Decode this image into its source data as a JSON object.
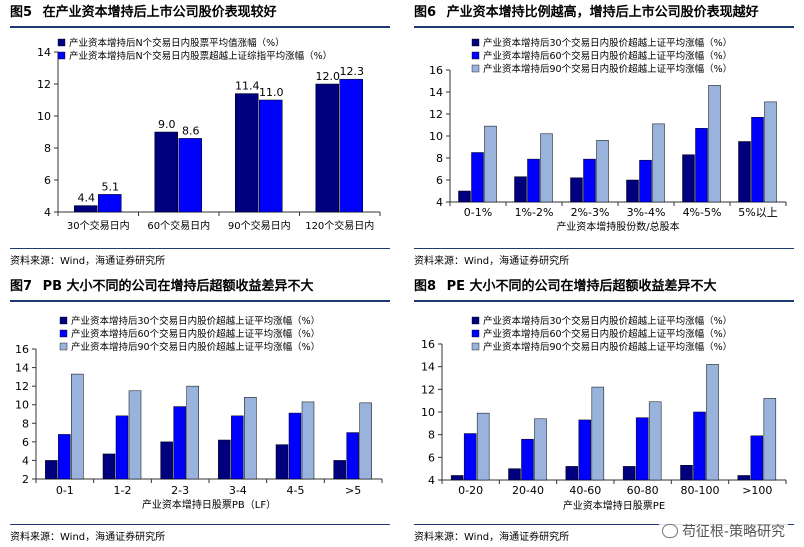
{
  "charts": [
    {
      "fig": "图5",
      "title": "在产业资本增持后上市公司股价表现较好",
      "source": "资料来源：Wind，海通证券研究所"
    },
    {
      "fig": "图6",
      "title": "产业资本增持比例越高，增持后上市公司股价表现越好",
      "source": "资料来源：Wind，海通证券研究所"
    },
    {
      "fig": "图7",
      "title": "PB 大小不同的公司在增持后超额收益差异不大",
      "source": "资料来源：Wind，海通证券研究所"
    },
    {
      "fig": "图8",
      "title": "PE 大小不同的公司在增持后超额收益差异不大",
      "source": "资料来源：Wind，海通证券研究所"
    }
  ],
  "chart_data": [
    {
      "type": "bar",
      "title": "在产业资本增持后上市公司股价表现较好",
      "xlabel": "",
      "ylabel": "",
      "categories": [
        "30个交易日内",
        "60个交易日内",
        "90个交易日内",
        "120个交易日内"
      ],
      "series": [
        {
          "name": "产业资本增持后N个交易日内股票平均值涨幅（%）",
          "color": "#00007f",
          "values": [
            4.4,
            9.0,
            11.4,
            12.0
          ],
          "labels": [
            "4.4",
            "9.0",
            "11.4",
            "12.0"
          ]
        },
        {
          "name": "产业资本增持后N个交易日内股票超越上证综指平均涨幅（%）",
          "color": "#0000ff",
          "values": [
            5.1,
            8.6,
            11.0,
            12.3
          ],
          "labels": [
            "5.1",
            "8.6",
            "11.0",
            "12.3"
          ]
        }
      ],
      "ylim": [
        4,
        14
      ],
      "yticks": [
        4,
        6,
        8,
        10,
        12,
        14
      ],
      "legend": "top-left",
      "grid": false
    },
    {
      "type": "bar",
      "title": "产业资本增持比例越高，增持后上市公司股价表现越好",
      "xlabel": "产业资本增持股份数/总股本",
      "ylabel": "",
      "categories": [
        "0-1%",
        "1%-2%",
        "2%-3%",
        "3%-4%",
        "4%-5%",
        "5%以上"
      ],
      "series": [
        {
          "name": "产业资本增持后30个交易日内股价超越上证平均涨幅（%）",
          "color": "#00007f",
          "values": [
            5.0,
            6.3,
            6.2,
            6.0,
            8.3,
            9.5
          ]
        },
        {
          "name": "产业资本增持后60个交易日内股价超越上证平均涨幅（%）",
          "color": "#0000ff",
          "values": [
            8.5,
            7.9,
            7.9,
            7.8,
            10.7,
            11.7
          ]
        },
        {
          "name": "产业资本增持后90个交易日内股价超越上证平均涨幅（%）",
          "color": "#99b3dd",
          "values": [
            10.9,
            10.2,
            9.6,
            11.1,
            14.6,
            13.1
          ]
        }
      ],
      "ylim": [
        4,
        16
      ],
      "yticks": [
        4,
        6,
        8,
        10,
        12,
        14,
        16
      ],
      "legend": "top-left",
      "grid": false
    },
    {
      "type": "bar",
      "title": "PB 大小不同的公司在增持后超额收益差异不大",
      "xlabel": "产业资本增持日股票PB（LF）",
      "ylabel": "",
      "categories": [
        "0-1",
        "1-2",
        "2-3",
        "3-4",
        "4-5",
        ">5"
      ],
      "series": [
        {
          "name": "产业资本增持后30个交易日内股价超越上证平均涨幅（%）",
          "color": "#00007f",
          "values": [
            4.0,
            4.7,
            6.0,
            6.2,
            5.7,
            4.0
          ]
        },
        {
          "name": "产业资本增持后60个交易日内股价超越上证平均涨幅（%）",
          "color": "#0000ff",
          "values": [
            6.8,
            8.8,
            9.8,
            8.8,
            9.1,
            7.0
          ]
        },
        {
          "name": "产业资本增持后90个交易日内股价超越上证平均涨幅（%）",
          "color": "#99b3dd",
          "values": [
            13.3,
            11.5,
            12.0,
            10.8,
            10.3,
            10.2
          ]
        }
      ],
      "ylim": [
        2,
        16
      ],
      "yticks": [
        2,
        4,
        6,
        8,
        10,
        12,
        14,
        16
      ],
      "legend": "top-left",
      "grid": false
    },
    {
      "type": "bar",
      "title": "PE 大小不同的公司在增持后超额收益差异不大",
      "xlabel": "产业资本增持日股票PE",
      "ylabel": "",
      "categories": [
        "0-20",
        "20-40",
        "40-60",
        "60-80",
        "80-100",
        ">100"
      ],
      "series": [
        {
          "name": "产业资本增持后30个交易日内股价超越上证平均涨幅（%）",
          "color": "#00007f",
          "values": [
            4.4,
            5.0,
            5.2,
            5.2,
            5.3,
            4.4
          ]
        },
        {
          "name": "产业资本增持后60个交易日内股价超越上证平均涨幅（%）",
          "color": "#0000ff",
          "values": [
            8.1,
            7.6,
            9.3,
            9.5,
            10.0,
            7.9
          ]
        },
        {
          "name": "产业资本增持后90个交易日内股价超越上证平均涨幅（%）",
          "color": "#99b3dd",
          "values": [
            9.9,
            9.4,
            12.2,
            10.9,
            14.2,
            11.2
          ]
        }
      ],
      "ylim": [
        4,
        16
      ],
      "yticks": [
        4,
        6,
        8,
        10,
        12,
        14,
        16
      ],
      "legend": "top-left",
      "grid": false
    }
  ],
  "watermark": "苟征根-策略研究"
}
